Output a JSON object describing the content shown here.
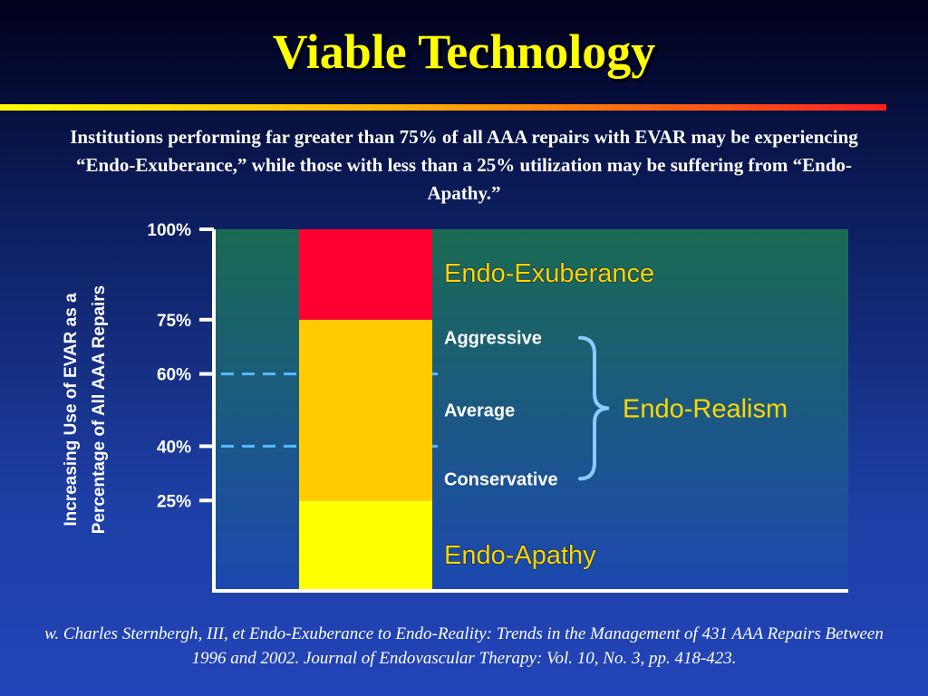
{
  "slide": {
    "title": "Viable Technology",
    "subtitle": "Institutions performing far greater than 75% of all AAA repairs  with EVAR may be experiencing “Endo-Exuberance,” while those with less than a 25% utilization may be suffering from “Endo-Apathy.”",
    "citation": "w. Charles Sternbergh, III, et Endo-Exuberance to Endo-Reality: Trends in the Management of 431 AAA Repairs Between 1996 and 2002. Journal of Endovascular Therapy: Vol. 10, No. 3, pp. 418-423."
  },
  "chart_data": {
    "type": "bar",
    "ylabel": [
      "Increasing Use of EVAR as a",
      "Percentage of All AAA Repairs"
    ],
    "yticks": [
      {
        "value": 100,
        "label": "100%"
      },
      {
        "value": 75,
        "label": "75%"
      },
      {
        "value": 60,
        "label": "60%"
      },
      {
        "value": 40,
        "label": "40%"
      },
      {
        "value": 25,
        "label": "25%"
      }
    ],
    "reference_lines": [
      60,
      40
    ],
    "segments": [
      {
        "from": 0,
        "to": 25,
        "color": "#ffff00"
      },
      {
        "from": 25,
        "to": 75,
        "color": "#ffcc00"
      },
      {
        "from": 75,
        "to": 100,
        "color": "#ff0033"
      }
    ],
    "zones": [
      {
        "label": "Endo-Exuberance",
        "value": 88
      },
      {
        "label": "Endo-Apathy",
        "value": 10
      }
    ],
    "levels": [
      {
        "label": "Aggressive",
        "value": 70
      },
      {
        "label": "Average",
        "value": 50
      },
      {
        "label": "Conservative",
        "value": 31
      }
    ],
    "bracket": {
      "label": "Endo-Realism",
      "from": 31,
      "to": 70
    },
    "colors": {
      "plot_top": "#1a6b52",
      "plot_bottom": "#1c48b0",
      "axis": "#ffffff",
      "reference": "#55bbff",
      "bracket": "#88ccff",
      "zone_text": "#ffd700"
    }
  }
}
